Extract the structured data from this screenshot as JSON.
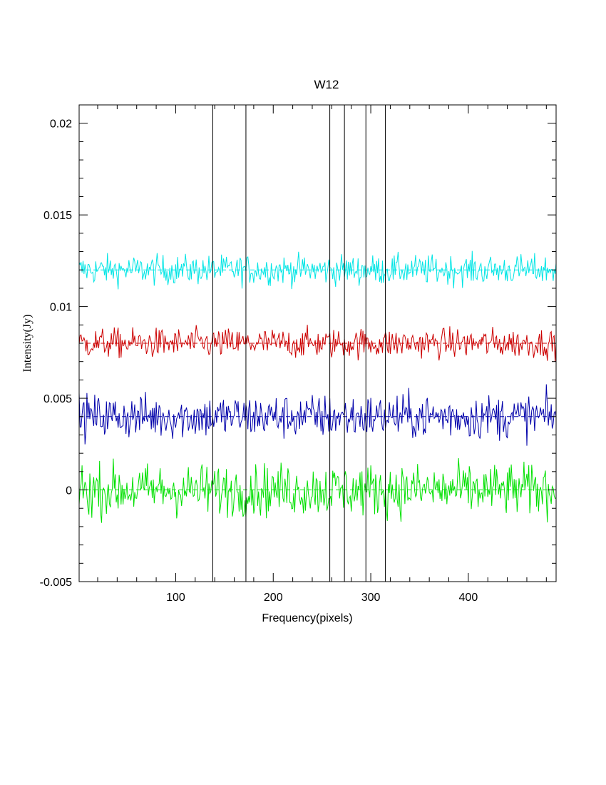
{
  "chart_data": {
    "type": "line",
    "title": "W12",
    "xlabel": "Frequency(pixels)",
    "ylabel": "Intensity(Jy)",
    "xlim": [
      1,
      490
    ],
    "ylim": [
      -0.005,
      0.021
    ],
    "x_ticks": [
      100,
      200,
      300,
      400
    ],
    "x_tick_labels": [
      "100",
      "200",
      "300",
      "400"
    ],
    "y_ticks": [
      -0.005,
      0,
      0.005,
      0.01,
      0.015,
      0.02
    ],
    "y_tick_labels": [
      "-0.005",
      "0",
      "0.005",
      "0.01",
      "0.015",
      "0.02"
    ],
    "vertical_markers": [
      138,
      172,
      258,
      273,
      295,
      315
    ],
    "series": [
      {
        "color": "#00e5e5",
        "baseline": 0.012,
        "noise_amplitude": 0.0004,
        "n_points": 490
      },
      {
        "color": "#cc0000",
        "baseline": 0.008,
        "noise_amplitude": 0.0004,
        "n_points": 490
      },
      {
        "color": "#0000aa",
        "baseline": 0.004,
        "noise_amplitude": 0.0006,
        "n_points": 490
      },
      {
        "color": "#00e000",
        "baseline": 0.0,
        "noise_amplitude": 0.0007,
        "n_points": 490
      }
    ],
    "grid": false,
    "legend": "none"
  }
}
